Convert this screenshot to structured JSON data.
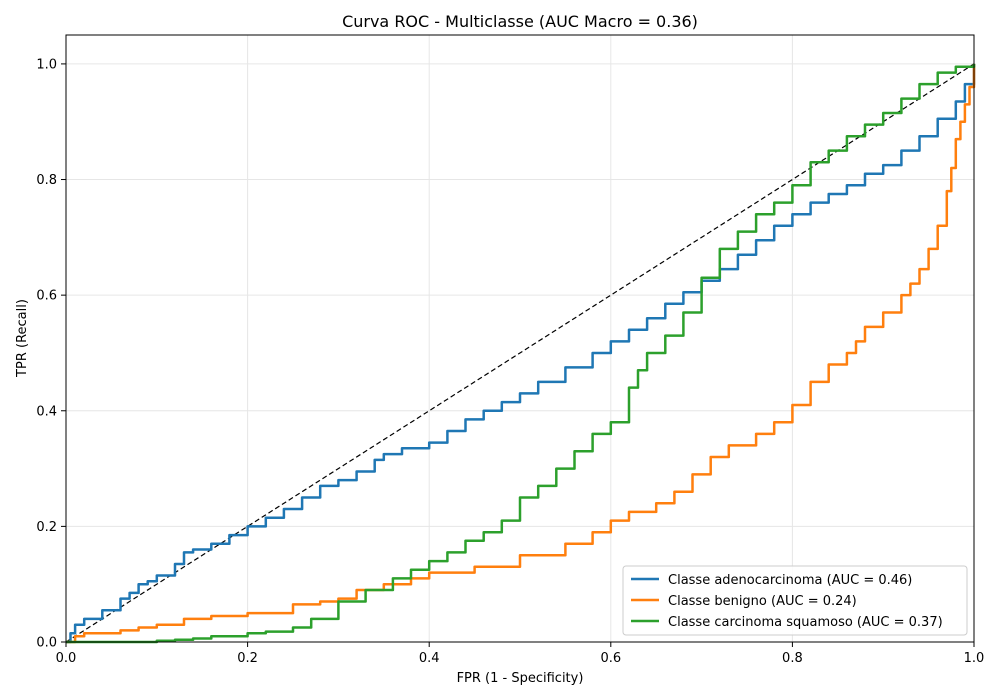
{
  "chart_data": {
    "type": "line",
    "title": "Curva ROC - Multiclasse (AUC Macro = 0.36)",
    "xlabel": "FPR (1 - Specificity)",
    "ylabel": "TPR (Recall)",
    "xlim": [
      0,
      1
    ],
    "ylim": [
      0,
      1.05
    ],
    "x_ticks": [
      "0.0",
      "0.2",
      "0.4",
      "0.6",
      "0.8",
      "1.0"
    ],
    "y_ticks": [
      "0.0",
      "0.2",
      "0.4",
      "0.6",
      "0.8",
      "1.0"
    ],
    "grid": true,
    "legend_position": "lower-right",
    "diagonal": {
      "x": [
        0,
        1
      ],
      "y": [
        0,
        1
      ],
      "color": "#000000",
      "style": "dashed"
    },
    "series": [
      {
        "name": "Classe adenocarcinoma (AUC = 0.46)",
        "color": "#1f77b4",
        "x": [
          0,
          0.005,
          0.01,
          0.02,
          0.04,
          0.06,
          0.07,
          0.08,
          0.09,
          0.1,
          0.12,
          0.13,
          0.14,
          0.16,
          0.18,
          0.2,
          0.22,
          0.24,
          0.26,
          0.28,
          0.3,
          0.32,
          0.34,
          0.35,
          0.37,
          0.4,
          0.42,
          0.44,
          0.46,
          0.48,
          0.5,
          0.52,
          0.55,
          0.58,
          0.6,
          0.62,
          0.64,
          0.66,
          0.68,
          0.7,
          0.72,
          0.74,
          0.76,
          0.78,
          0.8,
          0.82,
          0.84,
          0.86,
          0.88,
          0.9,
          0.92,
          0.94,
          0.96,
          0.98,
          0.99,
          1.0
        ],
        "y": [
          0,
          0.015,
          0.03,
          0.04,
          0.055,
          0.075,
          0.085,
          0.1,
          0.105,
          0.115,
          0.135,
          0.155,
          0.16,
          0.17,
          0.185,
          0.2,
          0.215,
          0.23,
          0.25,
          0.27,
          0.28,
          0.295,
          0.315,
          0.325,
          0.335,
          0.345,
          0.365,
          0.385,
          0.4,
          0.415,
          0.43,
          0.45,
          0.475,
          0.5,
          0.52,
          0.54,
          0.56,
          0.585,
          0.605,
          0.625,
          0.645,
          0.67,
          0.695,
          0.72,
          0.74,
          0.76,
          0.775,
          0.79,
          0.81,
          0.825,
          0.85,
          0.875,
          0.905,
          0.935,
          0.965,
          1.0
        ]
      },
      {
        "name": "Classe benigno (AUC = 0.24)",
        "color": "#ff7f0e",
        "x": [
          0,
          0.01,
          0.02,
          0.05,
          0.06,
          0.08,
          0.1,
          0.13,
          0.16,
          0.2,
          0.25,
          0.28,
          0.3,
          0.32,
          0.35,
          0.38,
          0.4,
          0.45,
          0.5,
          0.55,
          0.58,
          0.6,
          0.62,
          0.65,
          0.67,
          0.69,
          0.71,
          0.73,
          0.76,
          0.78,
          0.8,
          0.82,
          0.84,
          0.86,
          0.87,
          0.88,
          0.9,
          0.92,
          0.93,
          0.94,
          0.95,
          0.96,
          0.97,
          0.975,
          0.98,
          0.985,
          0.99,
          0.995,
          1.0
        ],
        "y": [
          0,
          0.01,
          0.015,
          0.015,
          0.02,
          0.025,
          0.03,
          0.04,
          0.045,
          0.05,
          0.065,
          0.07,
          0.075,
          0.09,
          0.1,
          0.11,
          0.12,
          0.13,
          0.15,
          0.17,
          0.19,
          0.21,
          0.225,
          0.24,
          0.26,
          0.29,
          0.32,
          0.34,
          0.36,
          0.38,
          0.41,
          0.45,
          0.48,
          0.5,
          0.52,
          0.545,
          0.57,
          0.6,
          0.62,
          0.645,
          0.68,
          0.72,
          0.78,
          0.82,
          0.87,
          0.9,
          0.93,
          0.96,
          1.0
        ]
      },
      {
        "name": "Classe carcinoma squamoso (AUC = 0.37)",
        "color": "#2ca02c",
        "x": [
          0,
          0.05,
          0.08,
          0.1,
          0.12,
          0.14,
          0.16,
          0.2,
          0.22,
          0.25,
          0.27,
          0.3,
          0.33,
          0.36,
          0.38,
          0.4,
          0.42,
          0.44,
          0.46,
          0.48,
          0.5,
          0.52,
          0.54,
          0.56,
          0.58,
          0.6,
          0.62,
          0.63,
          0.64,
          0.66,
          0.68,
          0.7,
          0.72,
          0.74,
          0.76,
          0.78,
          0.8,
          0.82,
          0.84,
          0.86,
          0.88,
          0.9,
          0.92,
          0.94,
          0.96,
          0.98,
          1.0
        ],
        "y": [
          0,
          0.0,
          0.0,
          0.002,
          0.004,
          0.006,
          0.01,
          0.015,
          0.018,
          0.025,
          0.04,
          0.07,
          0.09,
          0.11,
          0.125,
          0.14,
          0.155,
          0.175,
          0.19,
          0.21,
          0.25,
          0.27,
          0.3,
          0.33,
          0.36,
          0.38,
          0.44,
          0.47,
          0.5,
          0.53,
          0.57,
          0.63,
          0.68,
          0.71,
          0.74,
          0.76,
          0.79,
          0.83,
          0.85,
          0.875,
          0.895,
          0.915,
          0.94,
          0.965,
          0.985,
          0.995,
          1.0
        ]
      }
    ]
  }
}
